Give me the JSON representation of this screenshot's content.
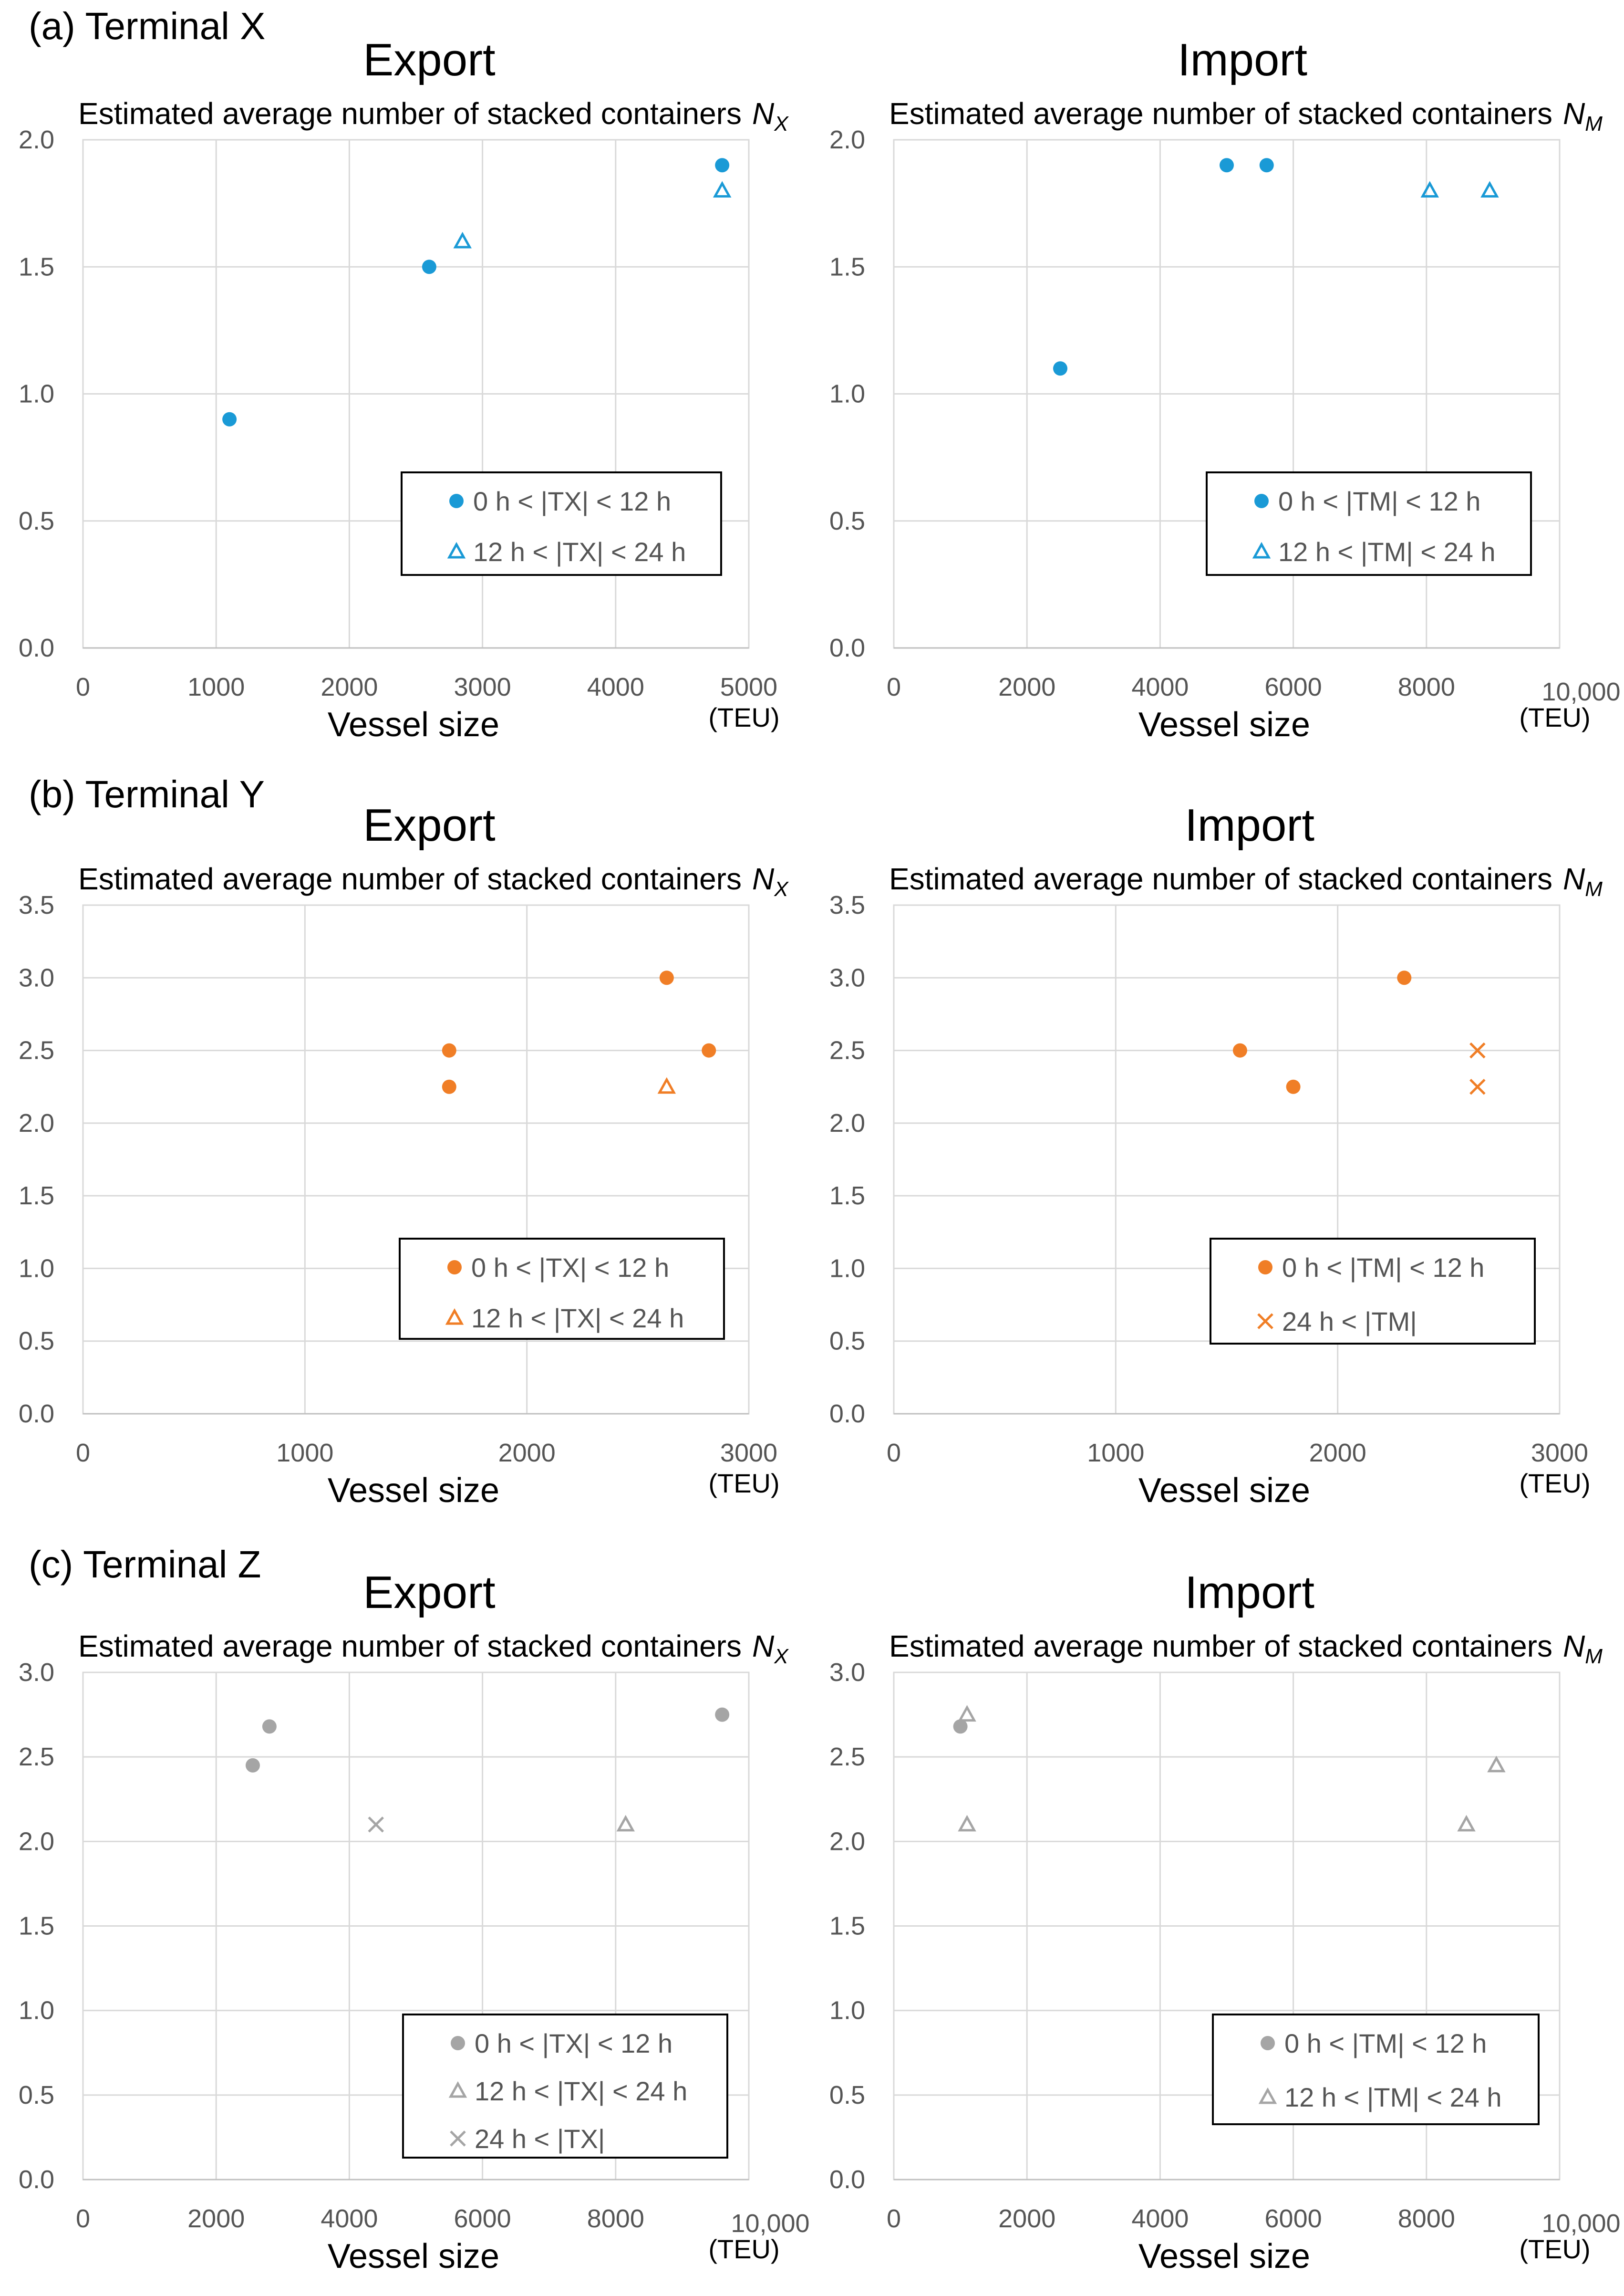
{
  "sections": [
    {
      "label": "(a) Terminal X"
    },
    {
      "label": "(b) Terminal Y"
    },
    {
      "label": "(c) Terminal Z"
    }
  ],
  "chart_data": [
    {
      "type": "scatter",
      "section": "(a) Terminal X",
      "title": "Export",
      "ylabel": "Estimated average number of stacked containers",
      "ylabel_symbol": "N",
      "ylabel_subscript": "X",
      "xlabel": "Vessel size",
      "xunit": "(TEU)",
      "xlim": [
        0,
        5000
      ],
      "ylim": [
        0,
        2.0
      ],
      "xticks": [
        0,
        1000,
        2000,
        3000,
        4000,
        5000
      ],
      "xtick_labels": [
        "0",
        "1000",
        "2000",
        "3000",
        "4000",
        "5000"
      ],
      "yticks": [
        0,
        0.5,
        1.0,
        1.5,
        2.0
      ],
      "ytick_labels": [
        "0.0",
        "0.5",
        "1.0",
        "1.5",
        "2.0"
      ],
      "grid": true,
      "legend_position": "lower-right",
      "color": "#1a9ad6",
      "series": [
        {
          "name": "0 h < |TX| < 12 h",
          "marker": "circle",
          "points": [
            [
              1100,
              0.9
            ],
            [
              2600,
              1.5
            ],
            [
              4800,
              1.9
            ]
          ]
        },
        {
          "name": "12 h < |TX| < 24 h",
          "marker": "triangle",
          "points": [
            [
              2850,
              1.6
            ],
            [
              4800,
              1.8
            ]
          ]
        }
      ]
    },
    {
      "type": "scatter",
      "section": "(a) Terminal X",
      "title": "Import",
      "ylabel": "Estimated average number of stacked containers",
      "ylabel_symbol": "N",
      "ylabel_subscript": "M",
      "xlabel": "Vessel size",
      "xunit": "(TEU)",
      "xlim": [
        0,
        10000
      ],
      "ylim": [
        0,
        2.0
      ],
      "xticks": [
        0,
        2000,
        4000,
        6000,
        8000,
        10000
      ],
      "xtick_labels": [
        "0",
        "2000",
        "4000",
        "6000",
        "8000",
        "10,000"
      ],
      "yticks": [
        0,
        0.5,
        1.0,
        1.5,
        2.0
      ],
      "ytick_labels": [
        "0.0",
        "0.5",
        "1.0",
        "1.5",
        "2.0"
      ],
      "grid": true,
      "legend_position": "lower-right",
      "color": "#1a9ad6",
      "series": [
        {
          "name": "0 h < |TM| < 12 h",
          "marker": "circle",
          "points": [
            [
              2500,
              1.1
            ],
            [
              5000,
              1.9
            ],
            [
              5600,
              1.9
            ]
          ]
        },
        {
          "name": "12 h < |TM| < 24 h",
          "marker": "triangle",
          "points": [
            [
              8050,
              1.8
            ],
            [
              8950,
              1.8
            ]
          ]
        }
      ]
    },
    {
      "type": "scatter",
      "section": "(b) Terminal Y",
      "title": "Export",
      "ylabel": "Estimated average number of stacked containers",
      "ylabel_symbol": "N",
      "ylabel_subscript": "X",
      "xlabel": "Vessel size",
      "xunit": "(TEU)",
      "xlim": [
        0,
        3000
      ],
      "ylim": [
        0,
        3.5
      ],
      "xticks": [
        0,
        1000,
        2000,
        3000
      ],
      "xtick_labels": [
        "0",
        "1000",
        "2000",
        "3000"
      ],
      "yticks": [
        0,
        0.5,
        1.0,
        1.5,
        2.0,
        2.5,
        3.0,
        3.5
      ],
      "ytick_labels": [
        "0.0",
        "0.5",
        "1.0",
        "1.5",
        "2.0",
        "2.5",
        "3.0",
        "3.5"
      ],
      "grid": true,
      "legend_position": "lower-right",
      "color": "#f07e26",
      "series": [
        {
          "name": "0 h < |TX| < 12 h",
          "marker": "circle",
          "points": [
            [
              1650,
              2.5
            ],
            [
              1650,
              2.25
            ],
            [
              2630,
              3.0
            ],
            [
              2820,
              2.5
            ]
          ]
        },
        {
          "name": "12 h < |TX| < 24 h",
          "marker": "triangle",
          "points": [
            [
              2630,
              2.25
            ]
          ]
        }
      ]
    },
    {
      "type": "scatter",
      "section": "(b) Terminal Y",
      "title": "Import",
      "ylabel": "Estimated average number of stacked containers",
      "ylabel_symbol": "N",
      "ylabel_subscript": "M",
      "xlabel": "Vessel size",
      "xunit": "(TEU)",
      "xlim": [
        0,
        3000
      ],
      "ylim": [
        0,
        3.5
      ],
      "xticks": [
        0,
        1000,
        2000,
        3000
      ],
      "xtick_labels": [
        "0",
        "1000",
        "2000",
        "3000"
      ],
      "yticks": [
        0,
        0.5,
        1.0,
        1.5,
        2.0,
        2.5,
        3.0,
        3.5
      ],
      "ytick_labels": [
        "0.0",
        "0.5",
        "1.0",
        "1.5",
        "2.0",
        "2.5",
        "3.0",
        "3.5"
      ],
      "grid": true,
      "legend_position": "lower-right",
      "color": "#f07e26",
      "series": [
        {
          "name": "0 h < |TM| < 12 h",
          "marker": "circle",
          "points": [
            [
              1560,
              2.5
            ],
            [
              1800,
              2.25
            ],
            [
              2300,
              3.0
            ]
          ]
        },
        {
          "name": "24 h < |TM|",
          "marker": "cross",
          "points": [
            [
              2630,
              2.5
            ],
            [
              2630,
              2.25
            ]
          ]
        }
      ]
    },
    {
      "type": "scatter",
      "section": "(c) Terminal Z",
      "title": "Export",
      "ylabel": "Estimated average number of stacked containers",
      "ylabel_symbol": "N",
      "ylabel_subscript": "X",
      "xlabel": "Vessel size",
      "xunit": "(TEU)",
      "xlim": [
        0,
        10000
      ],
      "ylim": [
        0,
        3.0
      ],
      "xticks": [
        0,
        2000,
        4000,
        6000,
        8000,
        10000
      ],
      "xtick_labels": [
        "0",
        "2000",
        "4000",
        "6000",
        "8000",
        "10,000"
      ],
      "yticks": [
        0,
        0.5,
        1.0,
        1.5,
        2.0,
        2.5,
        3.0
      ],
      "ytick_labels": [
        "0.0",
        "0.5",
        "1.0",
        "1.5",
        "2.0",
        "2.5",
        "3.0"
      ],
      "grid": true,
      "legend_position": "lower-right",
      "color": "#a5a5a5",
      "series": [
        {
          "name": "0 h < |TX| < 12 h",
          "marker": "circle",
          "points": [
            [
              2550,
              2.45
            ],
            [
              2800,
              2.68
            ],
            [
              9600,
              2.75
            ]
          ]
        },
        {
          "name": "12 h < |TX| < 24 h",
          "marker": "triangle",
          "points": [
            [
              8150,
              2.1
            ]
          ]
        },
        {
          "name": "24 h < |TX|",
          "marker": "cross",
          "points": [
            [
              4400,
              2.1
            ]
          ]
        }
      ]
    },
    {
      "type": "scatter",
      "section": "(c) Terminal Z",
      "title": "Import",
      "ylabel": "Estimated average number of stacked containers",
      "ylabel_symbol": "N",
      "ylabel_subscript": "M",
      "xlabel": "Vessel size",
      "xunit": "(TEU)",
      "xlim": [
        0,
        10000
      ],
      "ylim": [
        0,
        3.0
      ],
      "xticks": [
        0,
        2000,
        4000,
        6000,
        8000,
        10000
      ],
      "xtick_labels": [
        "0",
        "2000",
        "4000",
        "6000",
        "8000",
        "10,000"
      ],
      "yticks": [
        0,
        0.5,
        1.0,
        1.5,
        2.0,
        2.5,
        3.0
      ],
      "ytick_labels": [
        "0.0",
        "0.5",
        "1.0",
        "1.5",
        "2.0",
        "2.5",
        "3.0"
      ],
      "grid": true,
      "legend_position": "lower-right",
      "color": "#a5a5a5",
      "series": [
        {
          "name": "0 h < |TM| < 12 h",
          "marker": "circle",
          "points": [
            [
              1000,
              2.68
            ]
          ]
        },
        {
          "name": "12 h < |TM| < 24 h",
          "marker": "triangle",
          "points": [
            [
              1100,
              2.75
            ],
            [
              1100,
              2.1
            ],
            [
              8600,
              2.1
            ],
            [
              9050,
              2.45
            ]
          ]
        }
      ]
    }
  ]
}
